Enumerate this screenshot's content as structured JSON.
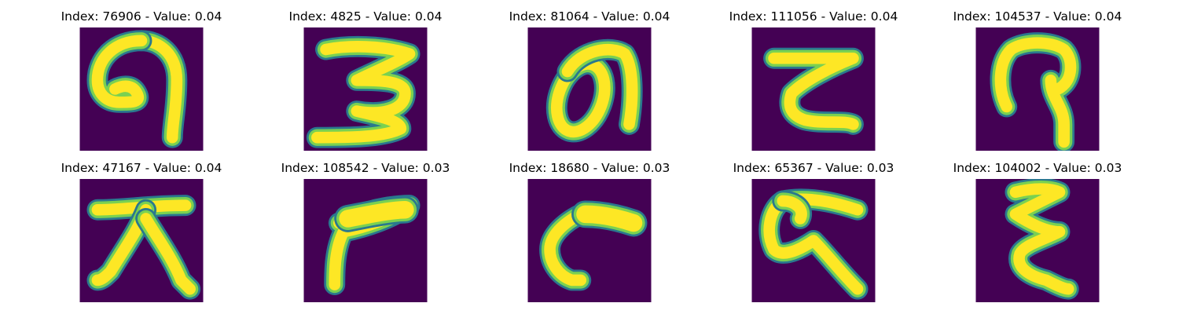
{
  "colors": {
    "background": "#440154",
    "edge": "#2a788e",
    "mid": "#7ad151",
    "core": "#fde725"
  },
  "panels": [
    {
      "title": "Index: 76906 - Value: 0.04",
      "glyph": "hook-loop-glyph"
    },
    {
      "title": "Index: 4825 - Value: 0.04",
      "glyph": "three-shape-glyph"
    },
    {
      "title": "Index: 81064 - Value: 0.04",
      "glyph": "loop-oval-glyph"
    },
    {
      "title": "Index: 111056 - Value: 0.04",
      "glyph": "zigzag-glyph"
    },
    {
      "title": "Index: 104537 - Value: 0.04",
      "glyph": "question-hook-glyph"
    },
    {
      "title": "Index: 47167 - Value: 0.04",
      "glyph": "tree-shape-glyph"
    },
    {
      "title": "Index: 108542 - Value: 0.03",
      "glyph": "flag-shape-glyph"
    },
    {
      "title": "Index: 18680 - Value: 0.03",
      "glyph": "curved-hook-glyph"
    },
    {
      "title": "Index: 65367 - Value: 0.03",
      "glyph": "loop-tail-glyph"
    },
    {
      "title": "Index: 104002 - Value: 0.03",
      "glyph": "epsilon-shape-glyph"
    }
  ]
}
